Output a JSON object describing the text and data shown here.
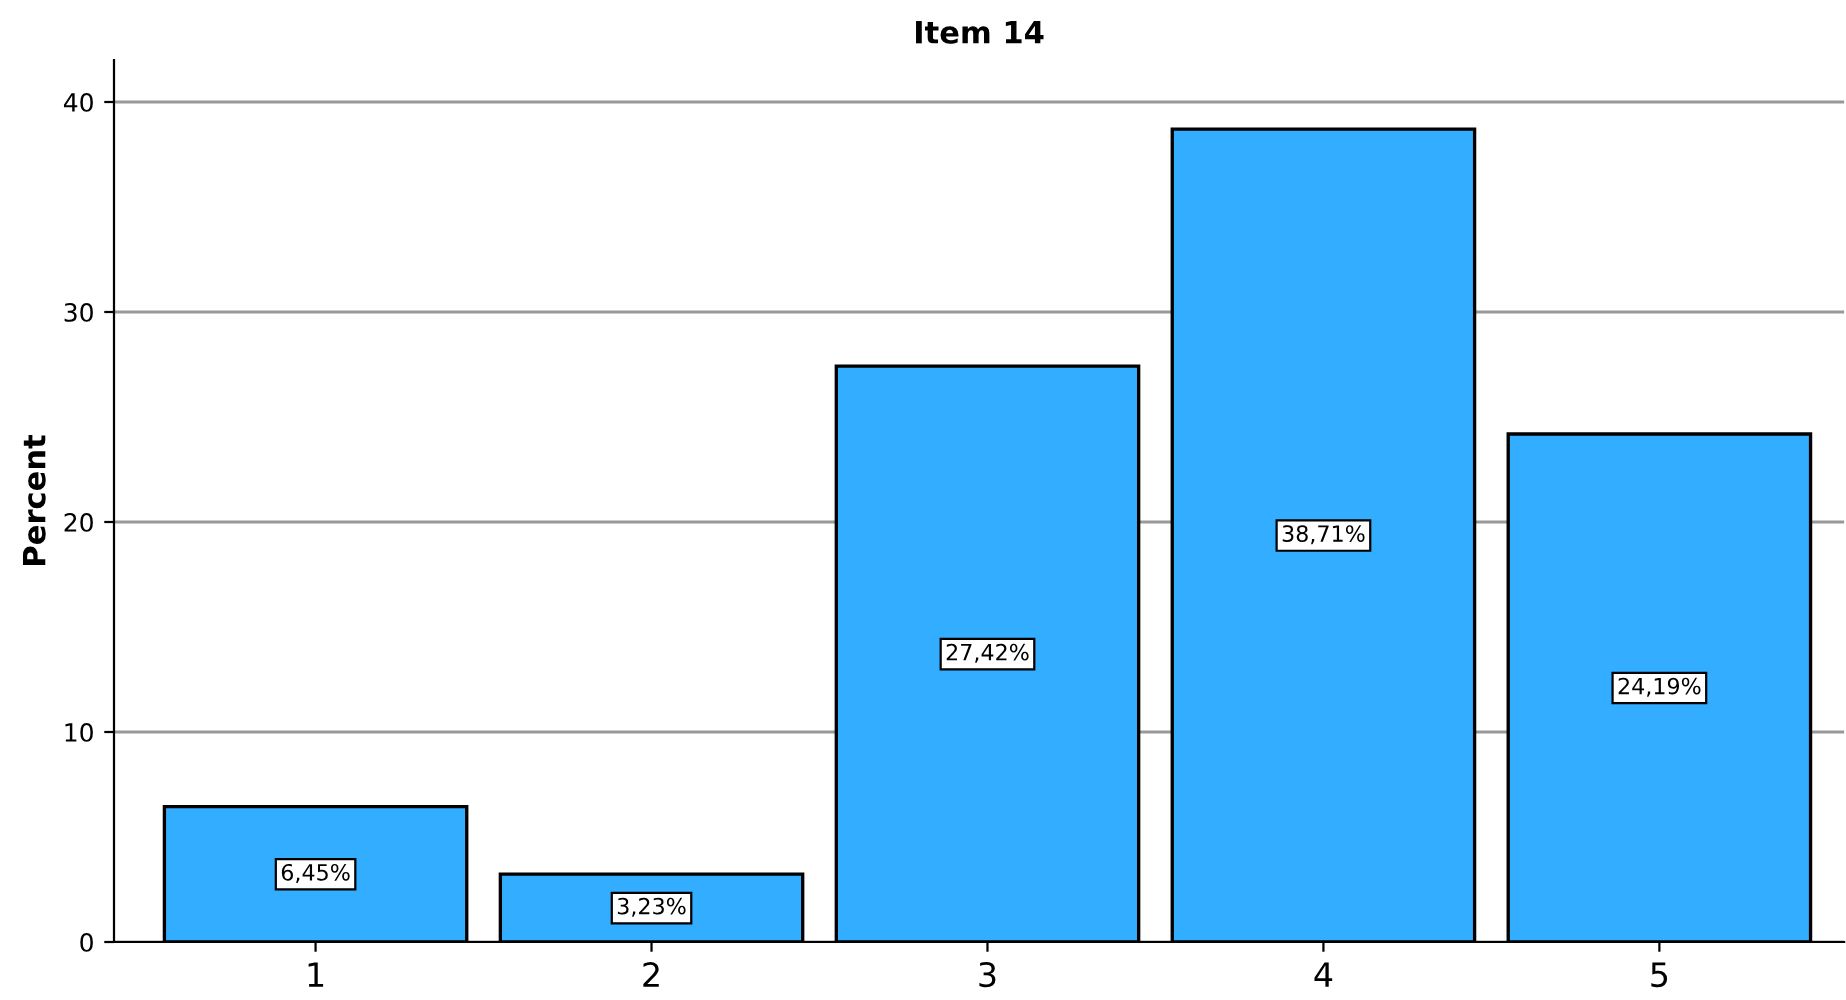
{
  "chart_data": {
    "type": "bar",
    "title": "Item 14",
    "ylabel": "Percent",
    "categories": [
      "1",
      "2",
      "3",
      "4",
      "5"
    ],
    "values": [
      6.45,
      3.23,
      27.42,
      38.71,
      24.19
    ],
    "value_labels": [
      "6,45%",
      "3,23%",
      "27,42%",
      "38,71%",
      "24,19%"
    ],
    "color": "#33adff",
    "ylim": [
      0,
      42
    ],
    "yticks": [
      0,
      10,
      20,
      30,
      40
    ],
    "grid": "y"
  }
}
